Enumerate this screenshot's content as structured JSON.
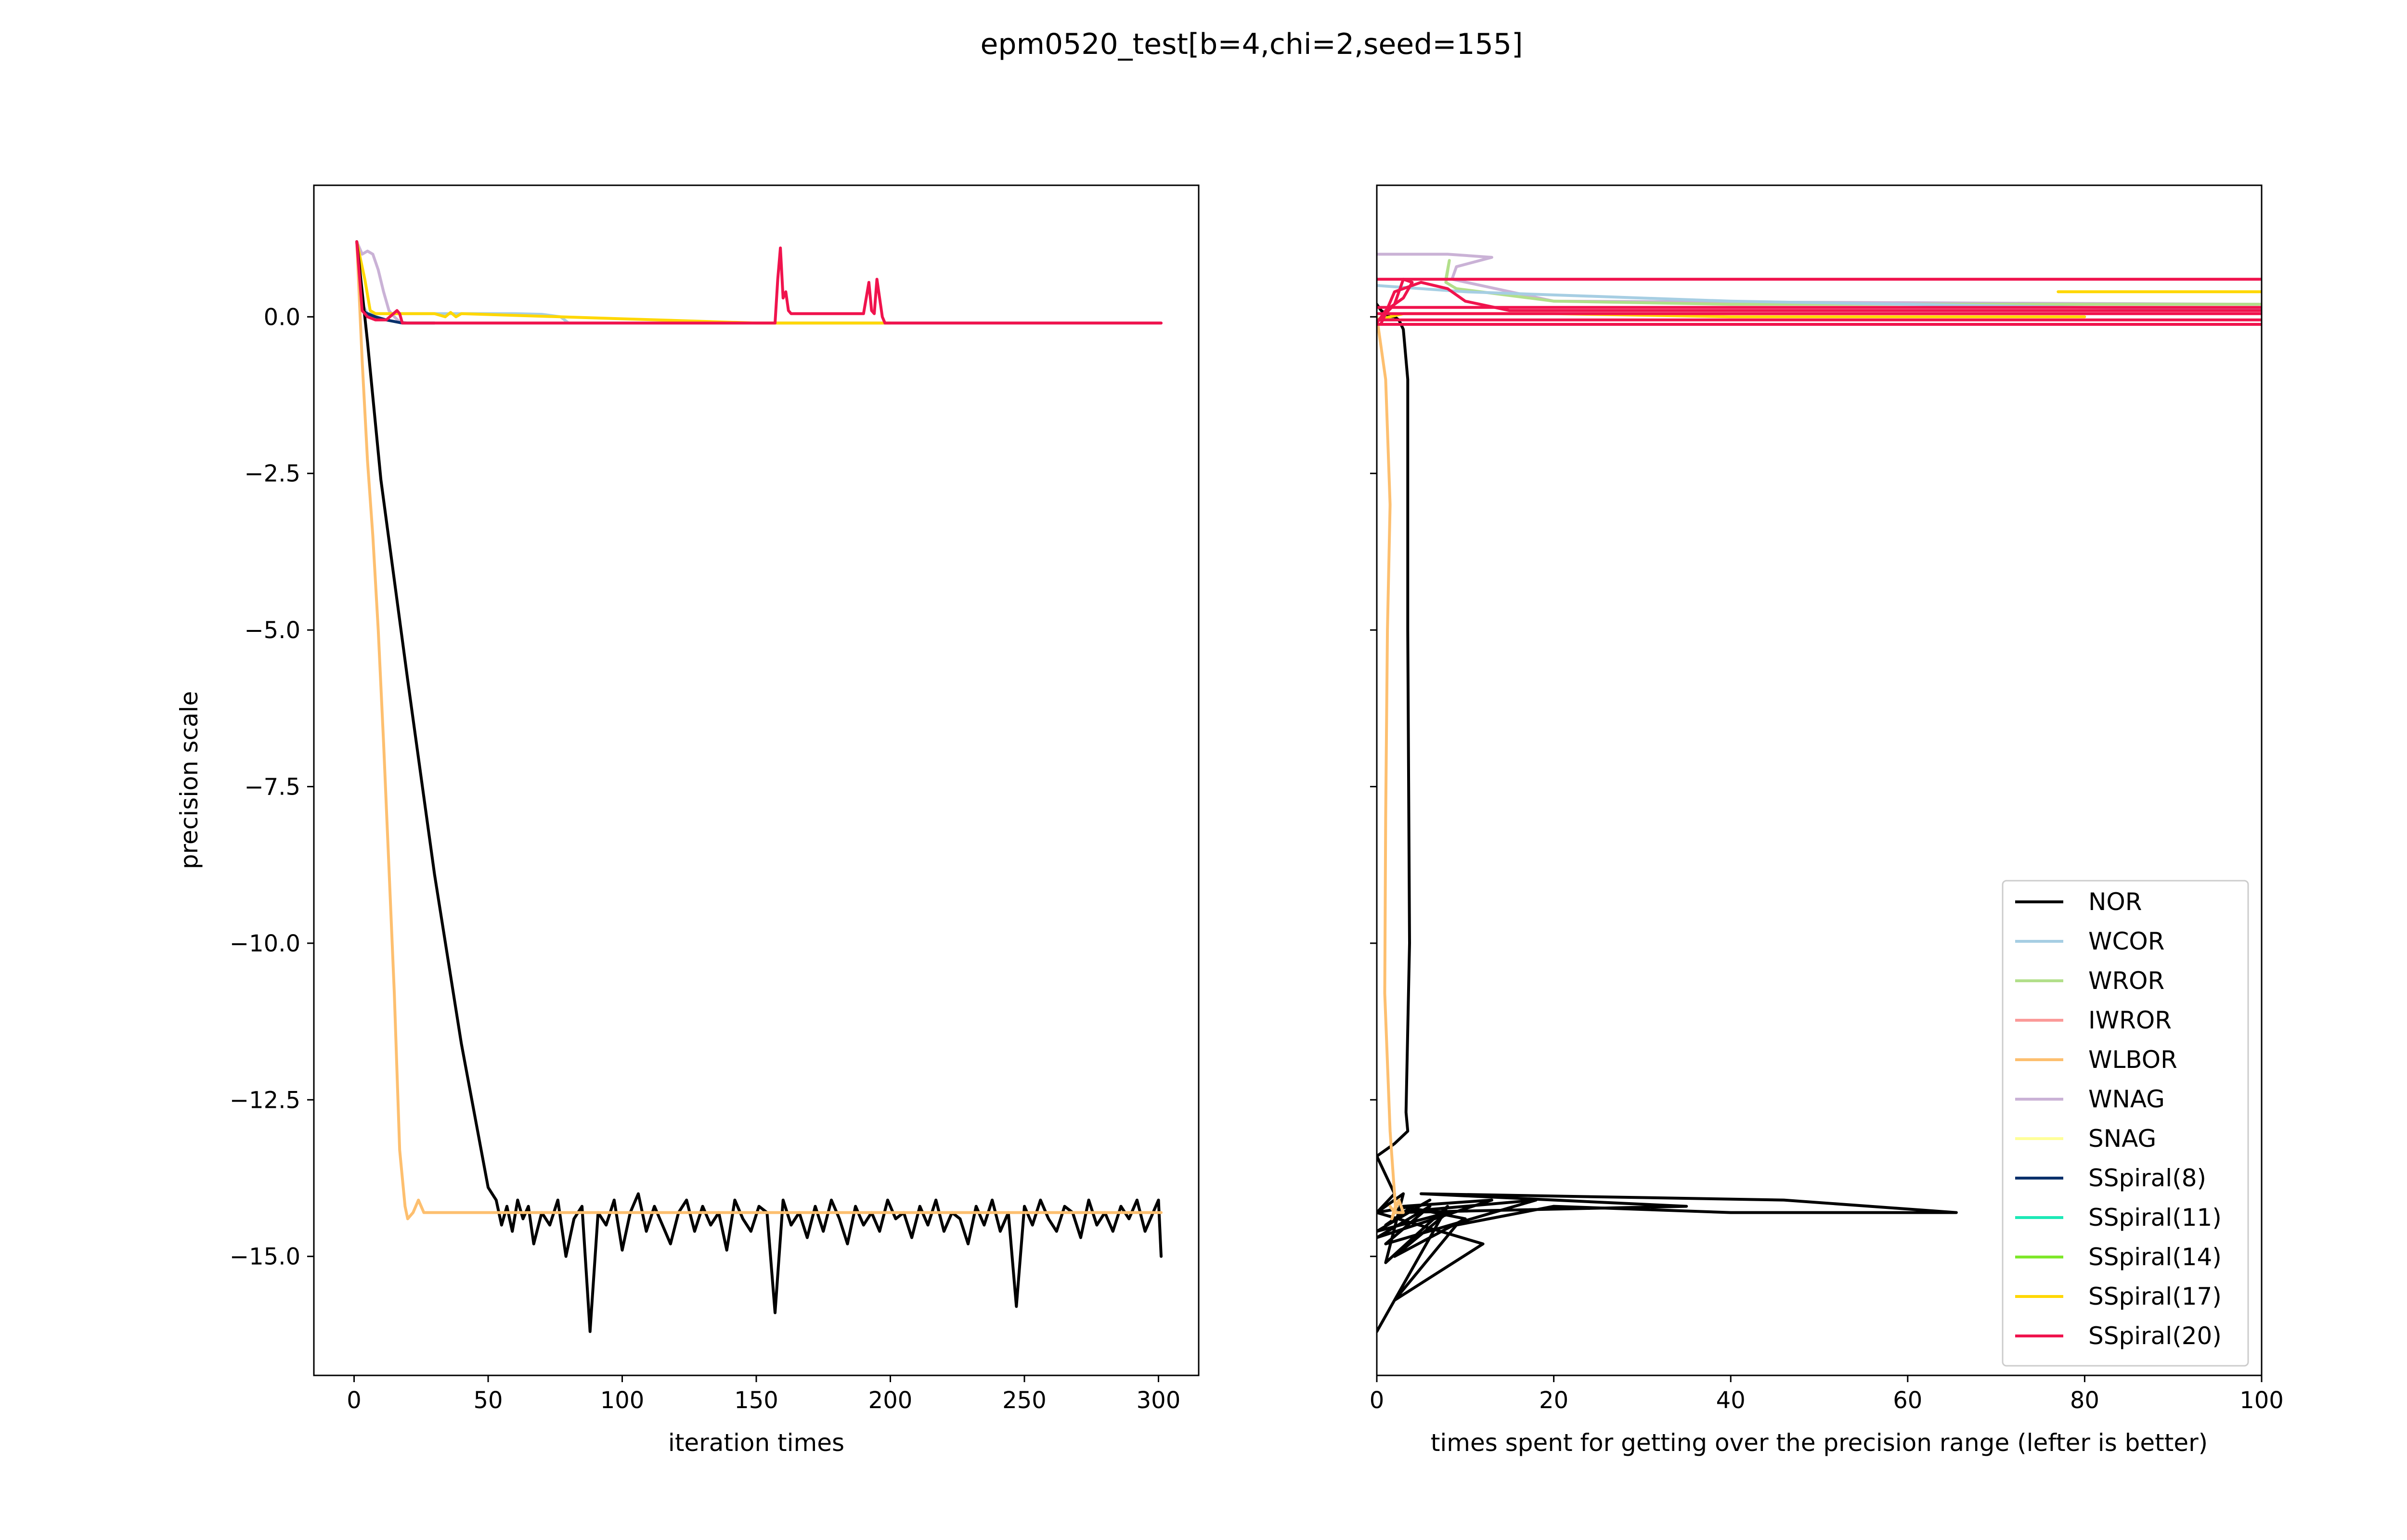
{
  "figure": {
    "title": "epm0520_test[b=4,chi=2,seed=155]"
  },
  "chart_data": [
    {
      "type": "line",
      "id": "left",
      "xlabel": "iteration times",
      "ylabel": "precision scale",
      "xlim": [
        -15,
        315
      ],
      "ylim": [
        -16.9,
        2.1
      ],
      "xticks": [
        0,
        50,
        100,
        150,
        200,
        250,
        300
      ],
      "yticks": [
        0.0,
        -2.5,
        -5.0,
        -7.5,
        -10.0,
        -12.5,
        -15.0
      ],
      "ytick_labels": [
        "0.0",
        "−2.5",
        "−5.0",
        "−7.5",
        "−10.0",
        "−12.5",
        "−15.0"
      ],
      "xtick_labels": [
        "0",
        "50",
        "100",
        "150",
        "200",
        "250",
        "300"
      ],
      "series": [
        {
          "name": "WCOR",
          "color": "#a6cee3",
          "x": [
            1,
            3,
            5,
            8,
            60,
            70,
            77,
            80,
            90,
            150,
            200,
            301
          ],
          "y": [
            1.2,
            0.2,
            0.05,
            0.05,
            0.05,
            0.04,
            0.0,
            -0.1,
            -0.1,
            -0.1,
            -0.1,
            -0.1
          ]
        },
        {
          "name": "WNAG",
          "color": "#cab2d6",
          "x": [
            1,
            3,
            5,
            7,
            9,
            11,
            13,
            15,
            17,
            20,
            60,
            150,
            200,
            301
          ],
          "y": [
            1.2,
            1.0,
            1.05,
            1.0,
            0.75,
            0.4,
            0.1,
            0.0,
            -0.08,
            -0.1,
            -0.1,
            -0.1,
            -0.1,
            -0.1
          ]
        },
        {
          "name": "SSpiral(8)",
          "color": "#08306b",
          "x": [
            1,
            3,
            5,
            8,
            12,
            18,
            22,
            30
          ],
          "y": [
            1.2,
            0.1,
            0.05,
            0.0,
            -0.05,
            -0.1,
            -0.1,
            -0.1
          ]
        },
        {
          "name": "SSpiral(17)",
          "color": "#ffd700",
          "x": [
            1,
            4,
            6,
            8,
            12,
            20,
            30,
            34,
            36,
            38,
            40,
            150,
            160,
            175,
            190,
            200
          ],
          "y": [
            1.2,
            0.6,
            0.1,
            0.05,
            0.05,
            0.05,
            0.05,
            0.0,
            0.07,
            0.0,
            0.05,
            -0.1,
            -0.1,
            -0.1,
            -0.1,
            -0.1
          ]
        },
        {
          "name": "NOR",
          "color": "#000000",
          "x": [
            1,
            5,
            10,
            20,
            30,
            40,
            50,
            53,
            55,
            57,
            59,
            61,
            63,
            65,
            67,
            70,
            73,
            76,
            79,
            82,
            85,
            88,
            91,
            94,
            97,
            100,
            103,
            106,
            109,
            112,
            115,
            118,
            121,
            124,
            127,
            130,
            133,
            136,
            139,
            142,
            145,
            148,
            151,
            154,
            157,
            160,
            163,
            166,
            169,
            172,
            175,
            178,
            181,
            184,
            187,
            190,
            193,
            196,
            199,
            202,
            205,
            208,
            211,
            214,
            217,
            220,
            223,
            226,
            229,
            232,
            235,
            238,
            241,
            244,
            247,
            250,
            253,
            256,
            259,
            262,
            265,
            268,
            271,
            274,
            277,
            280,
            283,
            286,
            289,
            292,
            295,
            298,
            300,
            301
          ],
          "y": [
            1.2,
            -0.4,
            -2.6,
            -5.8,
            -8.9,
            -11.6,
            -13.9,
            -14.1,
            -14.5,
            -14.2,
            -14.6,
            -14.1,
            -14.4,
            -14.2,
            -14.8,
            -14.3,
            -14.5,
            -14.1,
            -15.0,
            -14.4,
            -14.2,
            -16.2,
            -14.3,
            -14.5,
            -14.1,
            -14.9,
            -14.3,
            -14.0,
            -14.6,
            -14.2,
            -14.5,
            -14.8,
            -14.3,
            -14.1,
            -14.6,
            -14.2,
            -14.5,
            -14.3,
            -14.9,
            -14.1,
            -14.4,
            -14.6,
            -14.2,
            -14.3,
            -15.9,
            -14.1,
            -14.5,
            -14.3,
            -14.7,
            -14.2,
            -14.6,
            -14.1,
            -14.4,
            -14.8,
            -14.2,
            -14.5,
            -14.3,
            -14.6,
            -14.1,
            -14.4,
            -14.3,
            -14.7,
            -14.2,
            -14.5,
            -14.1,
            -14.6,
            -14.3,
            -14.4,
            -14.8,
            -14.2,
            -14.5,
            -14.1,
            -14.6,
            -14.3,
            -15.8,
            -14.2,
            -14.5,
            -14.1,
            -14.4,
            -14.6,
            -14.2,
            -14.3,
            -14.7,
            -14.1,
            -14.5,
            -14.3,
            -14.6,
            -14.2,
            -14.4,
            -14.1,
            -14.6,
            -14.3,
            -14.1,
            -15.0
          ]
        },
        {
          "name": "WLBOR",
          "color": "#fdbf6f",
          "x": [
            1,
            3,
            5,
            7,
            9,
            11,
            13,
            15,
            17,
            19,
            20,
            22,
            24,
            26,
            28,
            40,
            60,
            100,
            150,
            200,
            250,
            301
          ],
          "y": [
            1.2,
            -0.7,
            -2.3,
            -3.5,
            -5.0,
            -6.8,
            -8.8,
            -10.8,
            -13.3,
            -14.2,
            -14.4,
            -14.3,
            -14.1,
            -14.3,
            -14.3,
            -14.3,
            -14.3,
            -14.3,
            -14.3,
            -14.3,
            -14.3,
            -14.3
          ]
        },
        {
          "name": "SSpiral(20)",
          "color": "#f0134d",
          "x": [
            1,
            3,
            5,
            8,
            12,
            16,
            17,
            18,
            22,
            30,
            60,
            100,
            120,
            150,
            157,
            158,
            159,
            160,
            161,
            162,
            163,
            166,
            170,
            180,
            190,
            192,
            193,
            194,
            195,
            196,
            197,
            198,
            199,
            200,
            210,
            250,
            301
          ],
          "y": [
            1.2,
            0.1,
            0.0,
            -0.05,
            -0.05,
            0.1,
            0.05,
            -0.1,
            -0.1,
            -0.1,
            -0.1,
            -0.1,
            -0.1,
            -0.1,
            -0.1,
            0.6,
            1.1,
            0.3,
            0.4,
            0.1,
            0.05,
            0.05,
            0.05,
            0.05,
            0.05,
            0.55,
            0.1,
            0.05,
            0.6,
            0.3,
            0.0,
            -0.1,
            -0.1,
            -0.1,
            -0.1,
            -0.1,
            -0.1
          ]
        }
      ]
    },
    {
      "type": "line",
      "id": "right",
      "xlabel": "times spent for getting over the precision range (lefter is better)",
      "xlim": [
        0,
        100
      ],
      "ylim": [
        -16.9,
        2.1
      ],
      "xticks": [
        0,
        20,
        40,
        60,
        80,
        100
      ],
      "xtick_labels": [
        "0",
        "20",
        "40",
        "60",
        "80",
        "100"
      ],
      "yticks": [
        0.0,
        -2.5,
        -5.0,
        -7.5,
        -10.0,
        -12.5,
        -15.0
      ],
      "series": [
        {
          "name": "NOR",
          "color": "#000000",
          "x": [
            0,
            0.5,
            1,
            1.5,
            2,
            2.5,
            3,
            3.5,
            3.5,
            3.7,
            3.3,
            3.5,
            2.0,
            0,
            2,
            0,
            4,
            1,
            6,
            0,
            8,
            2,
            10,
            3,
            13,
            0,
            6,
            1,
            18,
            2,
            35,
            5,
            46,
            65.5,
            40,
            20,
            9,
            2,
            12,
            0,
            3,
            1,
            8,
            0
          ],
          "y": [
            0.2,
            0.1,
            0.05,
            0.0,
            0.0,
            -0.05,
            -0.2,
            -1.0,
            -5.0,
            -10.0,
            -12.7,
            -13.0,
            -13.2,
            -13.4,
            -14.0,
            -14.3,
            -14.2,
            -14.5,
            -14.1,
            -14.6,
            -14.3,
            -15.0,
            -14.4,
            -14.2,
            -14.1,
            -14.7,
            -14.2,
            -14.8,
            -14.1,
            -14.3,
            -14.2,
            -14.0,
            -14.1,
            -14.3,
            -14.3,
            -14.2,
            -14.5,
            -15.7,
            -14.8,
            -14.3,
            -14.0,
            -15.1,
            -14.2,
            -16.2
          ]
        },
        {
          "name": "WLBOR",
          "color": "#fdbf6f",
          "x": [
            0,
            1,
            1.5,
            1.2,
            1.0,
            0.9,
            1.5,
            1.8,
            2.1,
            1.7,
            2.5,
            3.0,
            2.0,
            1.5
          ],
          "y": [
            0.0,
            -1.0,
            -3.0,
            -5.0,
            -8.0,
            -10.8,
            -13.0,
            -13.6,
            -14.2,
            -14.4,
            -14.1,
            -14.3,
            -14.3,
            -14.2
          ]
        },
        {
          "name": "WNAG",
          "color": "#cab2d6",
          "x": [
            0,
            8,
            13,
            9,
            8.5,
            20,
            100
          ],
          "y": [
            1.0,
            1.0,
            0.95,
            0.8,
            0.6,
            0.25,
            0.2
          ]
        },
        {
          "name": "WROR",
          "color": "#b2df8a",
          "x": [
            7.8,
            8.2,
            7.8,
            9,
            20,
            40,
            100
          ],
          "y": [
            0.6,
            0.9,
            0.55,
            0.45,
            0.25,
            0.2,
            0.2
          ]
        },
        {
          "name": "WCOR",
          "color": "#a6cee3",
          "x": [
            0,
            10,
            40,
            80,
            100
          ],
          "y": [
            0.5,
            0.4,
            0.25,
            0.15,
            0.12
          ]
        },
        {
          "name": "SSpiral(17)",
          "color": "#ffd700",
          "x": [
            0,
            3,
            20,
            40,
            80
          ],
          "y": [
            -0.05,
            0.05,
            0.05,
            0.0,
            0.0
          ]
        },
        {
          "name": "SSpiral(17) segment",
          "color": "#ffd700",
          "x": [
            77,
            100
          ],
          "y": [
            0.4,
            0.4
          ]
        },
        {
          "name": "SSpiral(20)",
          "color": "#f0134d",
          "x": [
            0,
            1,
            3,
            4,
            3,
            2,
            1,
            0.5,
            2,
            5,
            8,
            10,
            15,
            100
          ],
          "y": [
            -0.1,
            0.1,
            0.3,
            0.55,
            0.6,
            0.2,
            0.05,
            -0.1,
            0.4,
            0.55,
            0.45,
            0.25,
            0.1,
            0.1
          ]
        },
        {
          "name": "SSpiral(20) h1",
          "color": "#f0134d",
          "x": [
            0,
            100
          ],
          "y": [
            0.6,
            0.6
          ]
        },
        {
          "name": "SSpiral(20) h2",
          "color": "#f0134d",
          "x": [
            0,
            100
          ],
          "y": [
            0.15,
            0.15
          ]
        },
        {
          "name": "SSpiral(20) h3",
          "color": "#f0134d",
          "x": [
            0,
            100
          ],
          "y": [
            0.05,
            0.05
          ]
        },
        {
          "name": "SSpiral(20) h4",
          "color": "#f0134d",
          "x": [
            0,
            100
          ],
          "y": [
            -0.05,
            -0.05
          ]
        },
        {
          "name": "SSpiral(20) h5",
          "color": "#f0134d",
          "x": [
            0,
            100
          ],
          "y": [
            -0.12,
            -0.12
          ]
        }
      ],
      "legend": {
        "placement": "lower right",
        "entries": [
          {
            "label": "NOR",
            "color": "#000000"
          },
          {
            "label": "WCOR",
            "color": "#a6cee3"
          },
          {
            "label": "WROR",
            "color": "#b2df8a"
          },
          {
            "label": "IWROR",
            "color": "#fb9a99"
          },
          {
            "label": "WLBOR",
            "color": "#fdbf6f"
          },
          {
            "label": "WNAG",
            "color": "#cab2d6"
          },
          {
            "label": "SNAG",
            "color": "#ffff99"
          },
          {
            "label": "SSpiral(8)",
            "color": "#08306b"
          },
          {
            "label": "SSpiral(11)",
            "color": "#1de9b6"
          },
          {
            "label": "SSpiral(14)",
            "color": "#7ee82a"
          },
          {
            "label": "SSpiral(17)",
            "color": "#ffd700"
          },
          {
            "label": "SSpiral(20)",
            "color": "#f0134d"
          }
        ]
      }
    }
  ]
}
